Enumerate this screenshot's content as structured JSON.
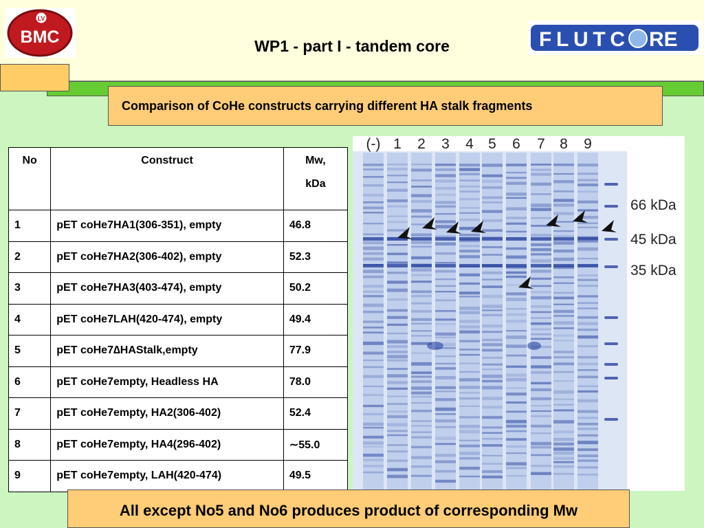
{
  "header": {
    "title": "WP1 - part I - tandem core",
    "logo_left": {
      "badge": "LV",
      "name": "BMC"
    },
    "logo_right": {
      "before": "FLUTC",
      "after": "RE"
    }
  },
  "subtitle": "Comparison of CoHe constructs carrying different HA stalk fragments",
  "table": {
    "header": [
      "No",
      "Construct",
      [
        "Mw,",
        "kDa"
      ]
    ],
    "rows": [
      [
        "1",
        "pET coHe7HA1(306-351), empty",
        "46.8"
      ],
      [
        "2",
        "pET coHe7HA2(306-402), empty",
        "52.3"
      ],
      [
        "3",
        "pET coHe7HA3(403-474), empty",
        "50.2"
      ],
      [
        "4",
        "pET coHe7LAH(420-474), empty",
        "49.4"
      ],
      [
        "5",
        "pET coHe7∆HAStalk,empty",
        "77.9"
      ],
      [
        "6",
        "pET coHe7empty, Headless HA",
        "78.0"
      ],
      [
        "7",
        "pET coHe7empty, HA2(306-402)",
        "52.4"
      ],
      [
        "8",
        "pET coHe7empty, HA4(296-402)",
        "∼55.0"
      ],
      [
        "9",
        "pET coHe7empty, LAH(420-474)",
        "49.5"
      ]
    ]
  },
  "gel": {
    "lane_labels": [
      "(-)",
      "1",
      "2",
      "3",
      "4",
      "5",
      "6",
      "7",
      "8",
      "9"
    ],
    "markers": [
      "66 kDa",
      "45 kDa",
      "35 kDa"
    ]
  },
  "conclusion": "All except No5 and No6 produces product of corresponding Mw"
}
